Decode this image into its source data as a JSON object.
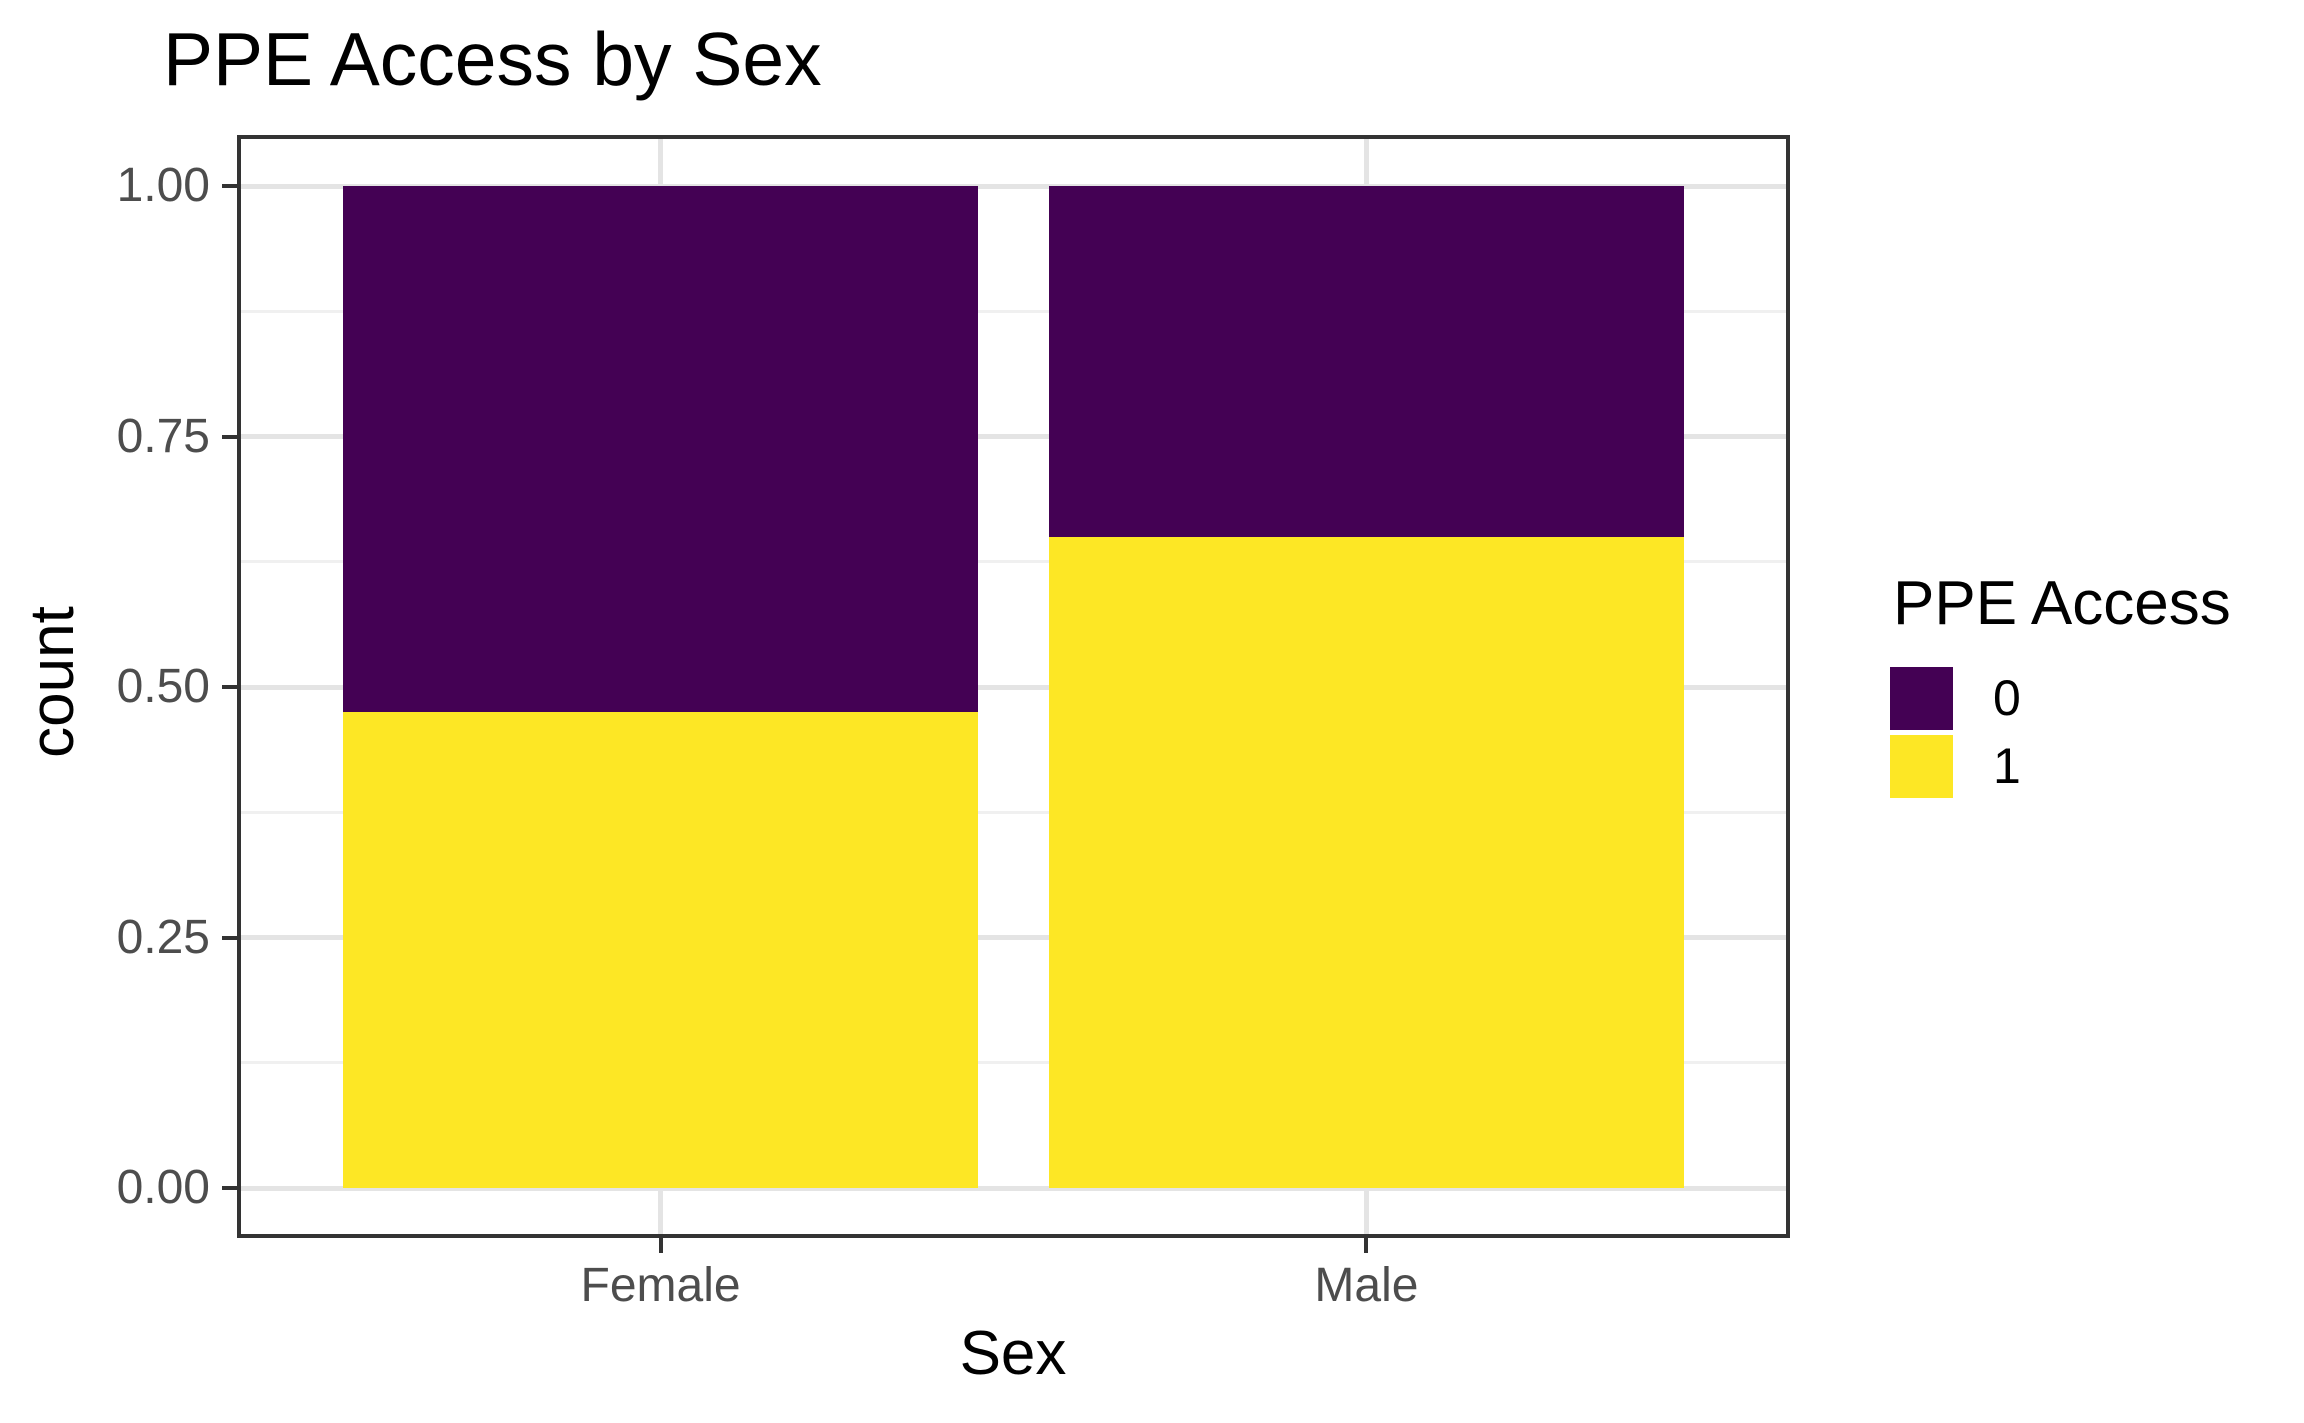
{
  "title": "PPE Access by Sex",
  "y_axis": {
    "title": "count",
    "tick_labels": [
      "0.00",
      "0.25",
      "0.50",
      "0.75",
      "1.00"
    ]
  },
  "x_axis": {
    "title": "Sex",
    "tick_labels": [
      "Female",
      "Male"
    ]
  },
  "legend": {
    "title": "PPE Access",
    "items": [
      {
        "label": "0",
        "color": "#440154"
      },
      {
        "label": "1",
        "color": "#FDE725"
      }
    ]
  },
  "chart_data": {
    "type": "bar",
    "subtype": "stacked-proportion",
    "title": "PPE Access by Sex",
    "xlabel": "Sex",
    "ylabel": "count",
    "categories": [
      "Female",
      "Male"
    ],
    "series": [
      {
        "name": "0",
        "color": "#440154",
        "values": [
          0.525,
          0.35
        ]
      },
      {
        "name": "1",
        "color": "#FDE725",
        "values": [
          0.475,
          0.65
        ]
      }
    ],
    "stack_order_top_to_bottom": [
      "0",
      "1"
    ],
    "ylim": [
      0,
      1
    ],
    "y_breaks": [
      0,
      0.25,
      0.5,
      0.75,
      1.0
    ],
    "y_minor_breaks": [
      0.125,
      0.375,
      0.625,
      0.875
    ],
    "bar_width_fraction": 0.9,
    "grid": true,
    "panel_border": true,
    "legend_title": "PPE Access",
    "legend_position": "right"
  }
}
